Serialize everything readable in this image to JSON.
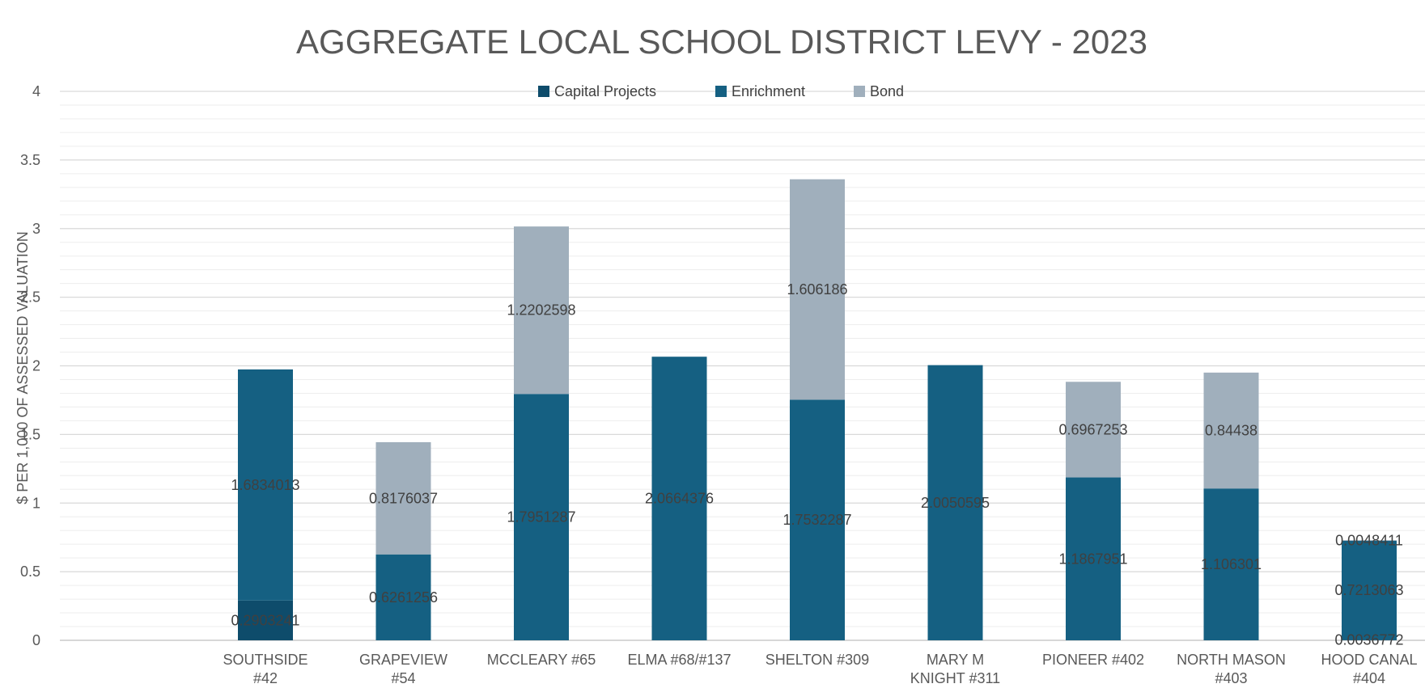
{
  "chart_data": {
    "type": "bar",
    "stacked": true,
    "title": "AGGREGATE LOCAL SCHOOL DISTRICT LEVY - 2023",
    "xlabel": "",
    "ylabel": "$ PER 1,000 OF ASSESSED VALUATION",
    "ylim": [
      0,
      4
    ],
    "yticks": [
      "0",
      "0.5",
      "1",
      "1.5",
      "2",
      "2.5",
      "3",
      "3.5",
      "4"
    ],
    "grid": true,
    "legend_position": "top-center",
    "categories": [
      [
        "SOUTHSIDE",
        "#42"
      ],
      [
        "GRAPEVIEW",
        "#54"
      ],
      [
        "MCCLEARY #65"
      ],
      [
        "ELMA #68/#137"
      ],
      [
        "SHELTON #309"
      ],
      [
        "MARY M",
        "KNIGHT #311"
      ],
      [
        "PIONEER #402"
      ],
      [
        "NORTH MASON",
        "#403"
      ],
      [
        "HOOD CANAL",
        "#404"
      ]
    ],
    "series": [
      {
        "name": "Capital Projects",
        "color": "#0E4C6B",
        "values": [
          0.2903241,
          0,
          0,
          0,
          0,
          0,
          0,
          0,
          0.0036772
        ],
        "labels": [
          "0.2903241",
          null,
          null,
          null,
          null,
          null,
          null,
          null,
          "0.0036772"
        ]
      },
      {
        "name": "Enrichment",
        "color": "#156082",
        "values": [
          1.6834013,
          0.6261256,
          1.7951287,
          2.0664376,
          1.7532287,
          2.0050595,
          1.1867951,
          1.106301,
          0.7213063
        ],
        "labels": [
          "1.6834013",
          "0.6261256",
          "1.7951287",
          "2.0664376",
          "1.7532287",
          "2.0050595",
          "1.1867951",
          "1.106301",
          "0.7213063"
        ]
      },
      {
        "name": "Bond",
        "color": "#A0AFBC",
        "values": [
          0,
          0.8176037,
          1.2202598,
          0,
          1.606186,
          0,
          0.6967253,
          0.84438,
          0.0048411
        ],
        "labels": [
          null,
          "0.8176037",
          "1.2202598",
          null,
          "1.606186",
          null,
          "0.6967253",
          "0.84438",
          "0.0048411"
        ]
      }
    ]
  }
}
